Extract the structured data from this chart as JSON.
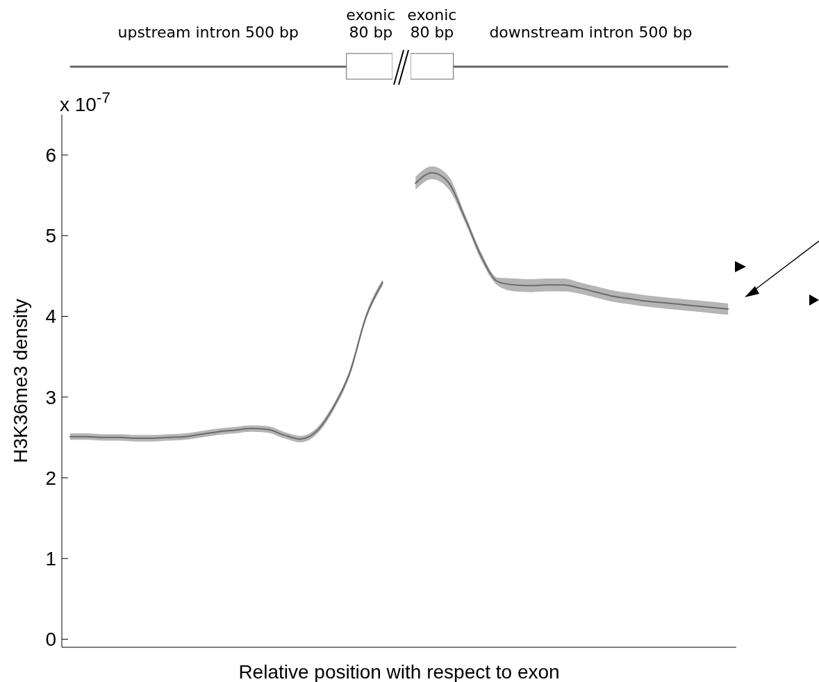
{
  "chart_data": {
    "type": "line",
    "ylabel": "H3K36me3 density",
    "xlabel": "Relative position with respect to exon",
    "categories": [
      null,
      null,
      null,
      null,
      null,
      null,
      null,
      null,
      null,
      null,
      null,
      null,
      null,
      null,
      null,
      null,
      null,
      null,
      null,
      null,
      null,
      null,
      null,
      null,
      null,
      null,
      null,
      null,
      null,
      null,
      null,
      null,
      null,
      null,
      null,
      null,
      null,
      null,
      null,
      null,
      null
    ],
    "series": [
      {
        "color": "#6b6b6b",
        "values": [
          2.51,
          2.51,
          2.5,
          2.5,
          2.49,
          2.49,
          2.5,
          2.51,
          2.54,
          2.57,
          2.59,
          2.61,
          2.6,
          2.53,
          2.48,
          2.58,
          2.87,
          3.3,
          4.0,
          4.42,
          null,
          5.65,
          5.78,
          5.66,
          5.22,
          4.74,
          4.43,
          4.39,
          4.38,
          4.39,
          4.39,
          4.35,
          4.3,
          4.25,
          4.22,
          4.19,
          4.17,
          4.15,
          4.13,
          4.11,
          4.09
        ],
        "lower": [
          2.47,
          2.47,
          2.46,
          2.46,
          2.45,
          2.45,
          2.46,
          2.47,
          2.5,
          2.53,
          2.55,
          2.57,
          2.56,
          2.49,
          2.44,
          2.54,
          2.83,
          3.26,
          3.96,
          4.38,
          null,
          5.57,
          5.7,
          5.58,
          5.17,
          4.69,
          4.38,
          4.31,
          4.3,
          4.31,
          4.31,
          4.28,
          4.23,
          4.18,
          4.15,
          4.12,
          4.1,
          4.08,
          4.06,
          4.04,
          4.02
        ],
        "upper": [
          2.55,
          2.55,
          2.54,
          2.54,
          2.53,
          2.53,
          2.54,
          2.55,
          2.58,
          2.61,
          2.63,
          2.65,
          2.64,
          2.57,
          2.52,
          2.62,
          2.91,
          3.34,
          4.04,
          4.46,
          null,
          5.73,
          5.86,
          5.74,
          5.27,
          4.79,
          4.48,
          4.47,
          4.46,
          4.47,
          4.47,
          4.42,
          4.37,
          4.32,
          4.29,
          4.26,
          4.24,
          4.22,
          4.2,
          4.18,
          4.16
        ]
      }
    ],
    "ylim": [
      -0.1,
      6.5
    ],
    "yticks": [
      0,
      1,
      2,
      3,
      4,
      5,
      6
    ],
    "tick_labels": "y",
    "grid": false,
    "annotations": [
      "x 10$^{-7}$",
      "upstream intron 500 bp",
      "exonic\n80 bp",
      "exonic\n80 bp",
      "downstream intron 500 bp"
    ]
  }
}
